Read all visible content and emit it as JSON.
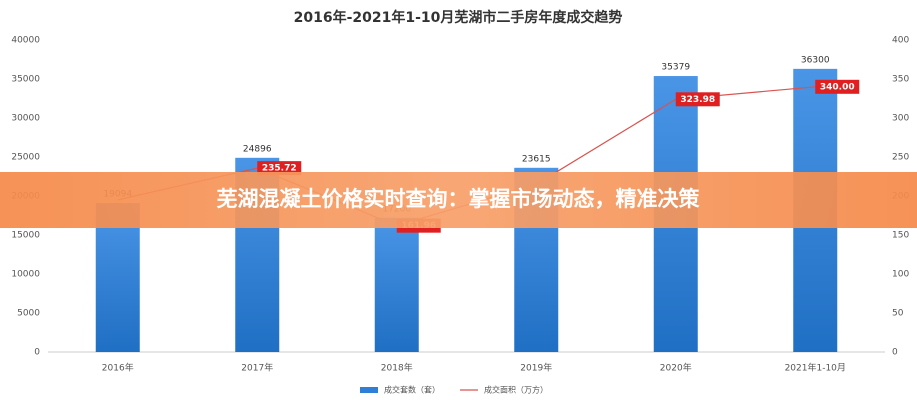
{
  "chart_data": {
    "type": "bar",
    "title": "2016年-2021年1-10月芜湖市二手房年度成交趋势",
    "categories": [
      "2016年",
      "2017年",
      "2018年",
      "2019年",
      "2020年",
      "2021年1-10月"
    ],
    "series": [
      {
        "name": "成交套数（套）",
        "type": "bar",
        "color": "#2f7ed8",
        "values": [
          19094,
          24896,
          17200,
          23615,
          35379,
          36300
        ]
      },
      {
        "name": "成交面积（万方）",
        "type": "line",
        "axis": "y2",
        "color": "#d9534f",
        "values": [
          195,
          235.72,
          161.96,
          215,
          323.98,
          340
        ],
        "value_labels": [
          null,
          "235.72",
          "161.96",
          null,
          "323.98",
          "340.00"
        ]
      }
    ],
    "ylim": [
      0,
      40000
    ],
    "yticks": [
      0,
      5000,
      10000,
      15000,
      20000,
      25000,
      30000,
      35000,
      40000
    ],
    "y2lim": [
      0,
      400
    ],
    "y2ticks": [
      0,
      50,
      100,
      150,
      200,
      250,
      300,
      350,
      400
    ],
    "grid": false
  },
  "banner": {
    "text": "芜湖混凝土价格实时查询：掌握市场动态，精准决策"
  }
}
